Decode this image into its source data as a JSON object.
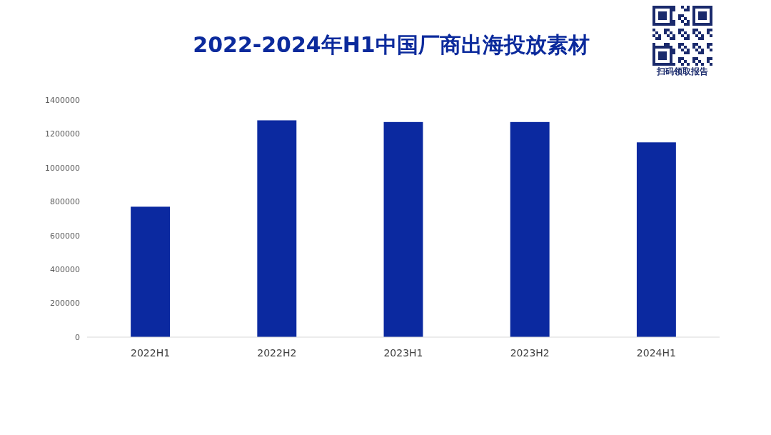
{
  "chart_data": {
    "type": "bar",
    "title": "2022-2024年H1中国厂商出海投放素材",
    "categories": [
      "2022H1",
      "2022H2",
      "2023H1",
      "2023H2",
      "2024H1"
    ],
    "values": [
      770000,
      1280000,
      1270000,
      1270000,
      1150000
    ],
    "color": "#0b29a0",
    "ylim": [
      0,
      1400000
    ],
    "yticks": [
      0,
      200000,
      400000,
      600000,
      800000,
      1000000,
      1200000,
      1400000
    ],
    "grid": false,
    "annotations": [
      "扫码领取报告"
    ]
  }
}
